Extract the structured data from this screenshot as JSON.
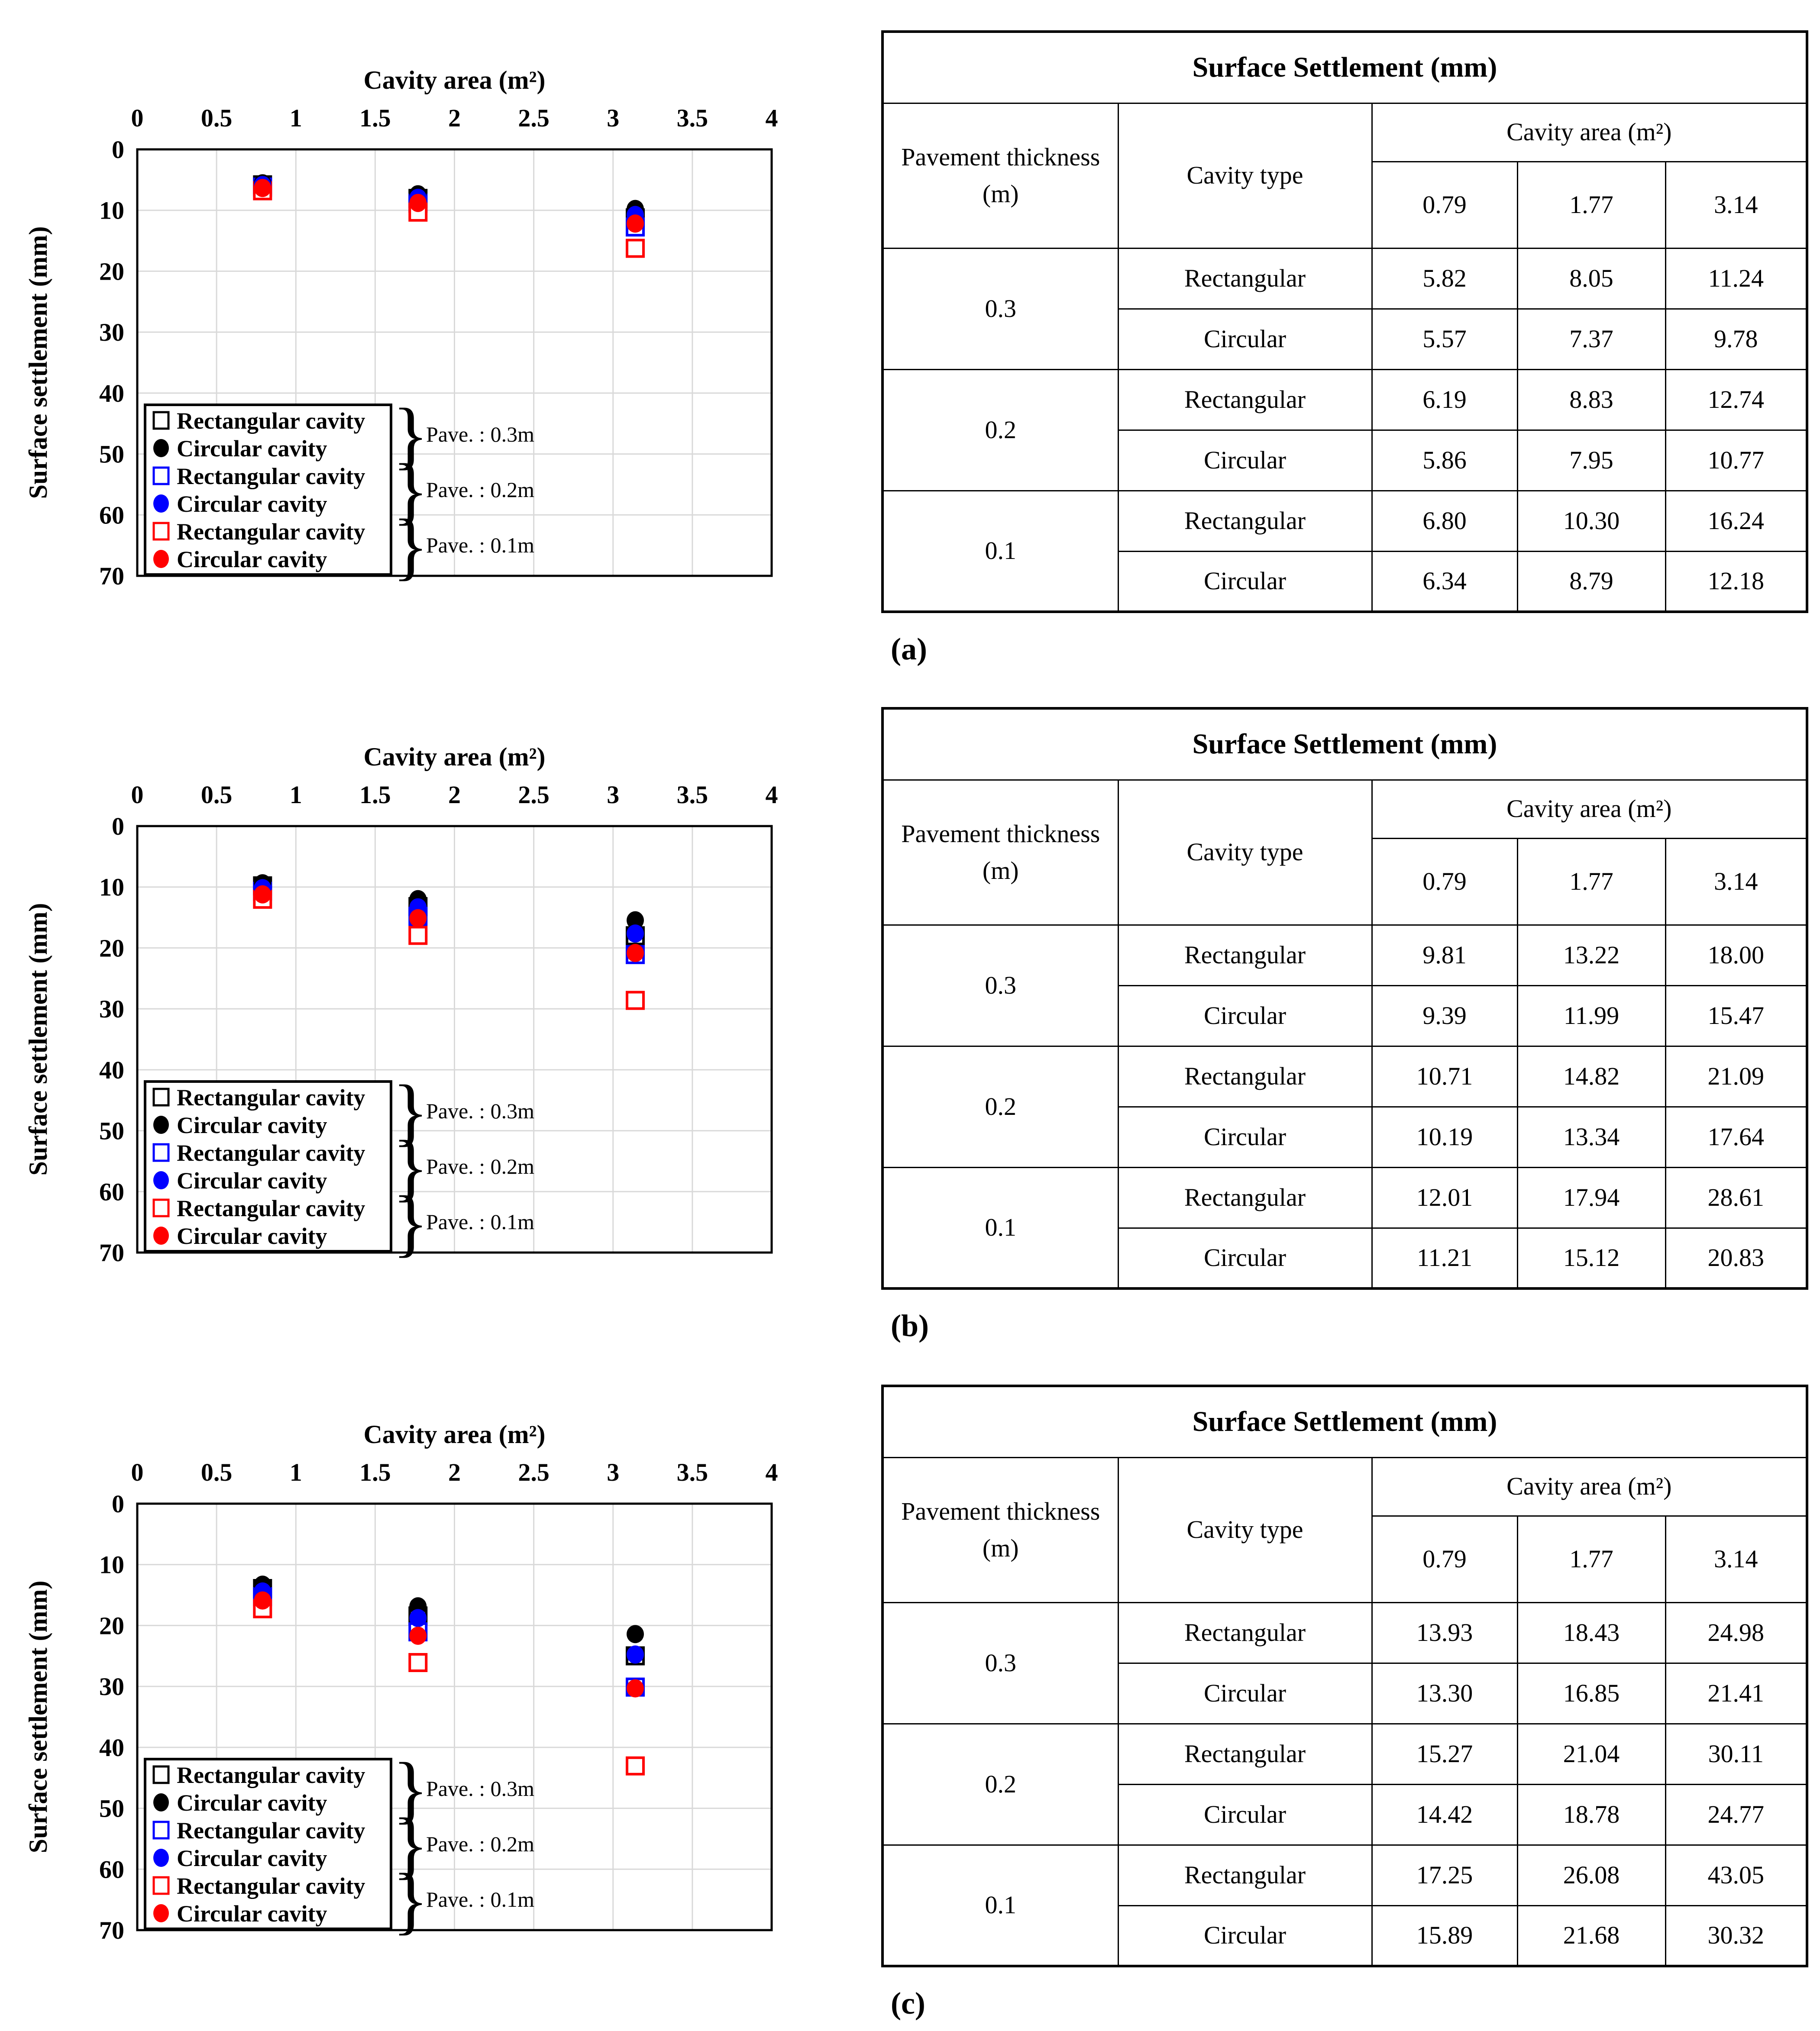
{
  "page": {
    "background": "#ffffff"
  },
  "captions": [
    "(a)",
    "(b)",
    "(c)"
  ],
  "colors": {
    "black": "#000000",
    "blue": "#0000ff",
    "red": "#ff0000",
    "grid": "#d9d9d9"
  },
  "chart_data": [
    {
      "type": "scatter",
      "xlabel": "Cavity area (m²)",
      "ylabel": "Surface settlement (mm)",
      "xlim": [
        0,
        4
      ],
      "ylim": [
        0,
        70
      ],
      "y_inverted": true,
      "grid": true,
      "x_ticks": [
        0,
        0.5,
        1,
        1.5,
        2,
        2.5,
        3,
        3.5,
        4
      ],
      "x_tick_labels": [
        "0",
        "0.5",
        "1",
        "1.5",
        "2",
        "2.5",
        "3",
        "3.5",
        "4"
      ],
      "y_ticks": [
        0,
        10,
        20,
        30,
        40,
        50,
        60,
        70
      ],
      "y_tick_labels": [
        "0",
        "10",
        "20",
        "30",
        "40",
        "50",
        "60",
        "70"
      ],
      "x": [
        0.79,
        1.77,
        3.14
      ],
      "series": [
        {
          "name": "Rectangular cavity",
          "pavement": "0.3m",
          "marker": "open-square",
          "color": "#000000",
          "values": [
            5.82,
            8.05,
            11.24
          ]
        },
        {
          "name": "Circular cavity",
          "pavement": "0.3m",
          "marker": "filled-circle",
          "color": "#000000",
          "values": [
            5.57,
            7.37,
            9.78
          ]
        },
        {
          "name": "Rectangular cavity",
          "pavement": "0.2m",
          "marker": "open-square",
          "color": "#0000ff",
          "values": [
            6.19,
            8.83,
            12.74
          ]
        },
        {
          "name": "Circular cavity",
          "pavement": "0.2m",
          "marker": "filled-circle",
          "color": "#0000ff",
          "values": [
            5.86,
            7.95,
            10.77
          ]
        },
        {
          "name": "Rectangular cavity",
          "pavement": "0.1m",
          "marker": "open-square",
          "color": "#ff0000",
          "values": [
            6.8,
            10.3,
            16.24
          ]
        },
        {
          "name": "Circular cavity",
          "pavement": "0.1m",
          "marker": "filled-circle",
          "color": "#ff0000",
          "values": [
            6.34,
            8.79,
            12.18
          ]
        }
      ],
      "legend_groups": [
        "Pave. : 0.3m",
        "Pave. : 0.2m",
        "Pave. : 0.1m"
      ],
      "legend_position": "bottom-left"
    },
    {
      "type": "scatter",
      "xlabel": "Cavity area (m²)",
      "ylabel": "Surface settlement (mm)",
      "xlim": [
        0,
        4
      ],
      "ylim": [
        0,
        70
      ],
      "y_inverted": true,
      "grid": true,
      "x_ticks": [
        0,
        0.5,
        1,
        1.5,
        2,
        2.5,
        3,
        3.5,
        4
      ],
      "x_tick_labels": [
        "0",
        "0.5",
        "1",
        "1.5",
        "2",
        "2.5",
        "3",
        "3.5",
        "4"
      ],
      "y_ticks": [
        0,
        10,
        20,
        30,
        40,
        50,
        60,
        70
      ],
      "y_tick_labels": [
        "0",
        "10",
        "20",
        "30",
        "40",
        "50",
        "60",
        "70"
      ],
      "x": [
        0.79,
        1.77,
        3.14
      ],
      "series": [
        {
          "name": "Rectangular cavity",
          "pavement": "0.3m",
          "marker": "open-square",
          "color": "#000000",
          "values": [
            9.81,
            13.22,
            18.0
          ]
        },
        {
          "name": "Circular cavity",
          "pavement": "0.3m",
          "marker": "filled-circle",
          "color": "#000000",
          "values": [
            9.39,
            11.99,
            15.47
          ]
        },
        {
          "name": "Rectangular cavity",
          "pavement": "0.2m",
          "marker": "open-square",
          "color": "#0000ff",
          "values": [
            10.71,
            14.82,
            21.09
          ]
        },
        {
          "name": "Circular cavity",
          "pavement": "0.2m",
          "marker": "filled-circle",
          "color": "#0000ff",
          "values": [
            10.19,
            13.34,
            17.64
          ]
        },
        {
          "name": "Rectangular cavity",
          "pavement": "0.1m",
          "marker": "open-square",
          "color": "#ff0000",
          "values": [
            12.01,
            17.94,
            28.61
          ]
        },
        {
          "name": "Circular cavity",
          "pavement": "0.1m",
          "marker": "filled-circle",
          "color": "#ff0000",
          "values": [
            11.21,
            15.12,
            20.83
          ]
        }
      ],
      "legend_groups": [
        "Pave. : 0.3m",
        "Pave. : 0.2m",
        "Pave. : 0.1m"
      ],
      "legend_position": "bottom-left"
    },
    {
      "type": "scatter",
      "xlabel": "Cavity area (m²)",
      "ylabel": "Surface settlement (mm)",
      "xlim": [
        0,
        4
      ],
      "ylim": [
        0,
        70
      ],
      "y_inverted": true,
      "grid": true,
      "x_ticks": [
        0,
        0.5,
        1,
        1.5,
        2,
        2.5,
        3,
        3.5,
        4
      ],
      "x_tick_labels": [
        "0",
        "0.5",
        "1",
        "1.5",
        "2",
        "2.5",
        "3",
        "3.5",
        "4"
      ],
      "y_ticks": [
        0,
        10,
        20,
        30,
        40,
        50,
        60,
        70
      ],
      "y_tick_labels": [
        "0",
        "10",
        "20",
        "30",
        "40",
        "50",
        "60",
        "70"
      ],
      "x": [
        0.79,
        1.77,
        3.14
      ],
      "series": [
        {
          "name": "Rectangular cavity",
          "pavement": "0.3m",
          "marker": "open-square",
          "color": "#000000",
          "values": [
            13.93,
            18.43,
            24.98
          ]
        },
        {
          "name": "Circular cavity",
          "pavement": "0.3m",
          "marker": "filled-circle",
          "color": "#000000",
          "values": [
            13.3,
            16.85,
            21.41
          ]
        },
        {
          "name": "Rectangular cavity",
          "pavement": "0.2m",
          "marker": "open-square",
          "color": "#0000ff",
          "values": [
            15.27,
            21.04,
            30.11
          ]
        },
        {
          "name": "Circular cavity",
          "pavement": "0.2m",
          "marker": "filled-circle",
          "color": "#0000ff",
          "values": [
            14.42,
            18.78,
            24.77
          ]
        },
        {
          "name": "Rectangular cavity",
          "pavement": "0.1m",
          "marker": "open-square",
          "color": "#ff0000",
          "values": [
            17.25,
            26.08,
            43.05
          ]
        },
        {
          "name": "Circular cavity",
          "pavement": "0.1m",
          "marker": "filled-circle",
          "color": "#ff0000",
          "values": [
            15.89,
            21.68,
            30.32
          ]
        }
      ],
      "legend_groups": [
        "Pave. : 0.3m",
        "Pave. : 0.2m",
        "Pave. : 0.1m"
      ],
      "legend_position": "bottom-left"
    }
  ],
  "tables": [
    {
      "title": "Surface Settlement (mm)",
      "row_header": "Pavement thickness (m)",
      "type_header": "Cavity type",
      "area_header": "Cavity area (m²)",
      "area_values": [
        "0.79",
        "1.77",
        "3.14"
      ],
      "groups": [
        {
          "thickness": "0.3",
          "rows": [
            {
              "type": "Rectangular",
              "values": [
                "5.82",
                "8.05",
                "11.24"
              ]
            },
            {
              "type": "Circular",
              "values": [
                "5.57",
                "7.37",
                "9.78"
              ]
            }
          ]
        },
        {
          "thickness": "0.2",
          "rows": [
            {
              "type": "Rectangular",
              "values": [
                "6.19",
                "8.83",
                "12.74"
              ]
            },
            {
              "type": "Circular",
              "values": [
                "5.86",
                "7.95",
                "10.77"
              ]
            }
          ]
        },
        {
          "thickness": "0.1",
          "rows": [
            {
              "type": "Rectangular",
              "values": [
                "6.80",
                "10.30",
                "16.24"
              ]
            },
            {
              "type": "Circular",
              "values": [
                "6.34",
                "8.79",
                "12.18"
              ]
            }
          ]
        }
      ]
    },
    {
      "title": "Surface Settlement (mm)",
      "row_header": "Pavement thickness (m)",
      "type_header": "Cavity type",
      "area_header": "Cavity area (m²)",
      "area_values": [
        "0.79",
        "1.77",
        "3.14"
      ],
      "groups": [
        {
          "thickness": "0.3",
          "rows": [
            {
              "type": "Rectangular",
              "values": [
                "9.81",
                "13.22",
                "18.00"
              ]
            },
            {
              "type": "Circular",
              "values": [
                "9.39",
                "11.99",
                "15.47"
              ]
            }
          ]
        },
        {
          "thickness": "0.2",
          "rows": [
            {
              "type": "Rectangular",
              "values": [
                "10.71",
                "14.82",
                "21.09"
              ]
            },
            {
              "type": "Circular",
              "values": [
                "10.19",
                "13.34",
                "17.64"
              ]
            }
          ]
        },
        {
          "thickness": "0.1",
          "rows": [
            {
              "type": "Rectangular",
              "values": [
                "12.01",
                "17.94",
                "28.61"
              ]
            },
            {
              "type": "Circular",
              "values": [
                "11.21",
                "15.12",
                "20.83"
              ]
            }
          ]
        }
      ]
    },
    {
      "title": "Surface Settlement (mm)",
      "row_header": "Pavement thickness (m)",
      "type_header": "Cavity type",
      "area_header": "Cavity area (m²)",
      "area_values": [
        "0.79",
        "1.77",
        "3.14"
      ],
      "groups": [
        {
          "thickness": "0.3",
          "rows": [
            {
              "type": "Rectangular",
              "values": [
                "13.93",
                "18.43",
                "24.98"
              ]
            },
            {
              "type": "Circular",
              "values": [
                "13.30",
                "16.85",
                "21.41"
              ]
            }
          ]
        },
        {
          "thickness": "0.2",
          "rows": [
            {
              "type": "Rectangular",
              "values": [
                "15.27",
                "21.04",
                "30.11"
              ]
            },
            {
              "type": "Circular",
              "values": [
                "14.42",
                "18.78",
                "24.77"
              ]
            }
          ]
        },
        {
          "thickness": "0.1",
          "rows": [
            {
              "type": "Rectangular",
              "values": [
                "17.25",
                "26.08",
                "43.05"
              ]
            },
            {
              "type": "Circular",
              "values": [
                "15.89",
                "21.68",
                "30.32"
              ]
            }
          ]
        }
      ]
    }
  ]
}
